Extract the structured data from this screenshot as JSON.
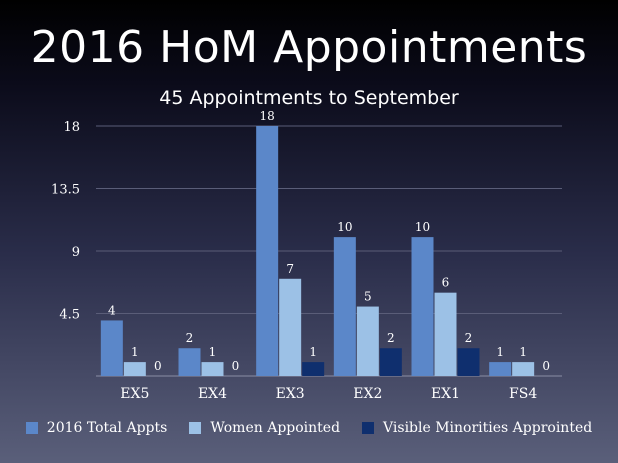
{
  "chart_data": {
    "type": "bar",
    "title": "2016 HoM Appointments",
    "subtitle": "45 Appointments to September",
    "categories": [
      "EX5",
      "EX4",
      "EX3",
      "EX2",
      "EX1",
      "FS4"
    ],
    "series": [
      {
        "name": "2016 Total Appts",
        "color": "#5b87c9",
        "values": [
          4,
          2,
          18,
          10,
          10,
          1
        ]
      },
      {
        "name": "Women Appointed",
        "color": "#9cc1e6",
        "values": [
          1,
          1,
          7,
          5,
          6,
          1
        ]
      },
      {
        "name": "Visible Minorities Approinted",
        "color": "#0f2f6e",
        "values": [
          0,
          0,
          1,
          2,
          2,
          0
        ]
      }
    ],
    "yticks": [
      "4.5",
      "9",
      "13.5",
      "18"
    ],
    "ylim": [
      0,
      18
    ],
    "grid": true,
    "legend_position": "bottom"
  }
}
